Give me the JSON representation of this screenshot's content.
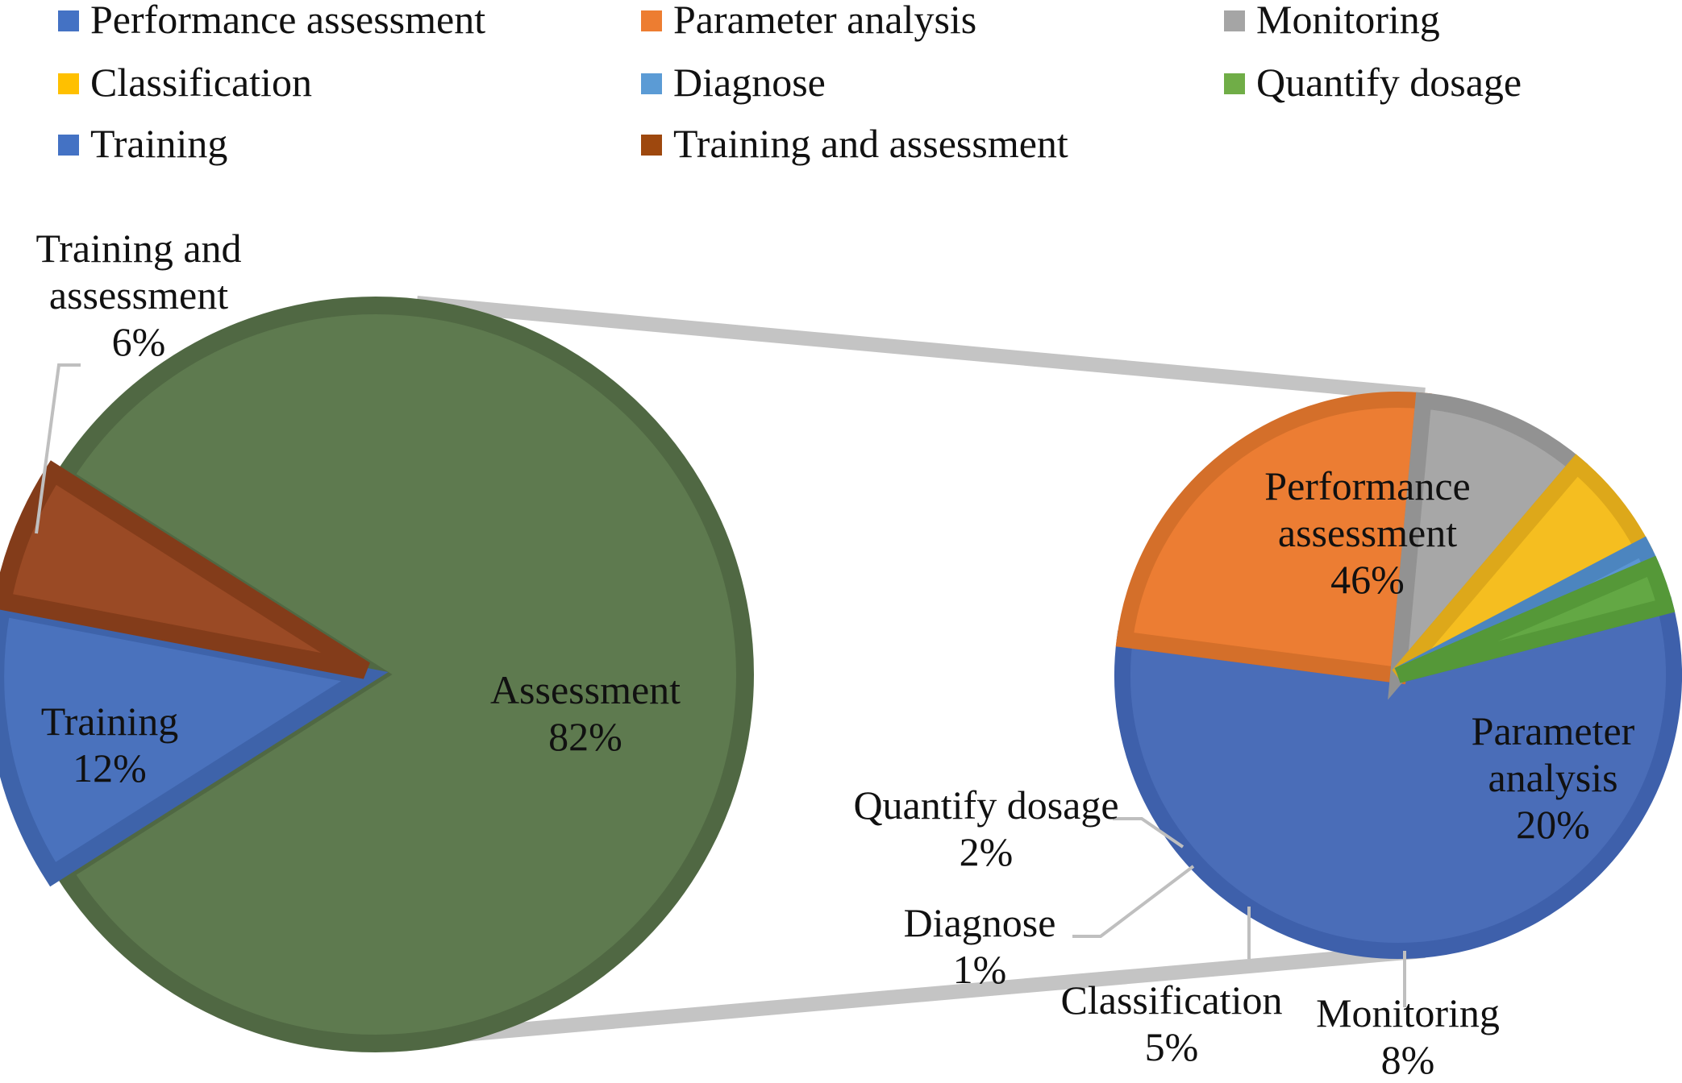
{
  "chart_data": {
    "type": "pie",
    "subtype": "pie-of-pie",
    "legend": {
      "placement": "top",
      "entries": [
        {
          "label": "Performance assessment",
          "color": "#4472C4"
        },
        {
          "label": "Parameter analysis",
          "color": "#ED7D31"
        },
        {
          "label": "Monitoring",
          "color": "#A5A5A5"
        },
        {
          "label": "Classification",
          "color": "#FFC000"
        },
        {
          "label": "Diagnose",
          "color": "#5B9BD5"
        },
        {
          "label": "Quantify dosage",
          "color": "#70AD47"
        },
        {
          "label": "Training",
          "color": "#4472C4"
        },
        {
          "label": "Training and assessment",
          "color": "#9E480E"
        }
      ]
    },
    "primary_pie": {
      "slices": [
        {
          "label": "Assessment",
          "value": 82,
          "value_label": "82%",
          "color": "#5E7A4F",
          "border": "#506843"
        },
        {
          "label": "Training",
          "value": 12,
          "value_label": "12%",
          "color": "#4A72BD",
          "border": "#3E63AA"
        },
        {
          "label": "Training and assessment",
          "value": 6,
          "value_label": "6%",
          "color": "#9A4A25",
          "border": "#833C1A"
        }
      ]
    },
    "secondary_pie": {
      "expands": "Assessment",
      "slices": [
        {
          "label": "Performance assessment",
          "value": 46,
          "value_label": "46%",
          "color": "#4A6DB8",
          "border": "#3E60AB"
        },
        {
          "label": "Parameter analysis",
          "value": 20,
          "value_label": "20%",
          "color": "#EC7D33",
          "border": "#D46F2A"
        },
        {
          "label": "Monitoring",
          "value": 8,
          "value_label": "8%",
          "color": "#A7A7A7",
          "border": "#929292"
        },
        {
          "label": "Classification",
          "value": 5,
          "value_label": "5%",
          "color": "#F5BE20",
          "border": "#DDA81A"
        },
        {
          "label": "Diagnose",
          "value": 1,
          "value_label": "1%",
          "color": "#5B96D2",
          "border": "#4C85BF"
        },
        {
          "label": "Quantify dosage",
          "value": 2,
          "value_label": "2%",
          "color": "#63A844",
          "border": "#559838"
        }
      ]
    },
    "connector_color": "#C4C4C4",
    "leader_line_color": "#BFBFBF"
  }
}
